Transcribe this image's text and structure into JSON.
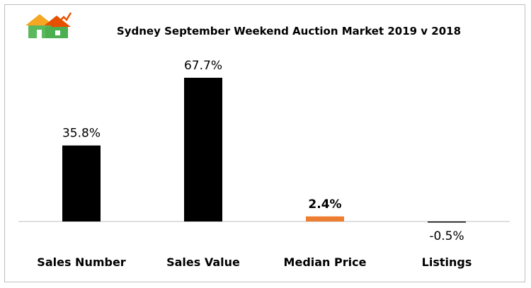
{
  "chart_data": {
    "type": "bar",
    "title": "Sydney September Weekend Auction Market 2019 v 2018",
    "xlabel": "",
    "ylabel": "",
    "categories": [
      "Sales Number",
      "Sales Value",
      "Median Price",
      "Listings"
    ],
    "values": [
      35.8,
      67.7,
      2.4,
      -0.5
    ],
    "data_labels": [
      "35.8%",
      "67.7%",
      "2.4%",
      "-0.5%"
    ],
    "bar_colors": [
      "#000000",
      "#000000",
      "#ed7d31",
      "#000000"
    ],
    "highlight_category": "Median Price",
    "ylim": [
      -1,
      75
    ],
    "grid": false,
    "legend": "none"
  },
  "logo": {
    "icon": "house-logo-icon",
    "colors": [
      "#f5a623",
      "#4caf50",
      "#e65100"
    ]
  }
}
